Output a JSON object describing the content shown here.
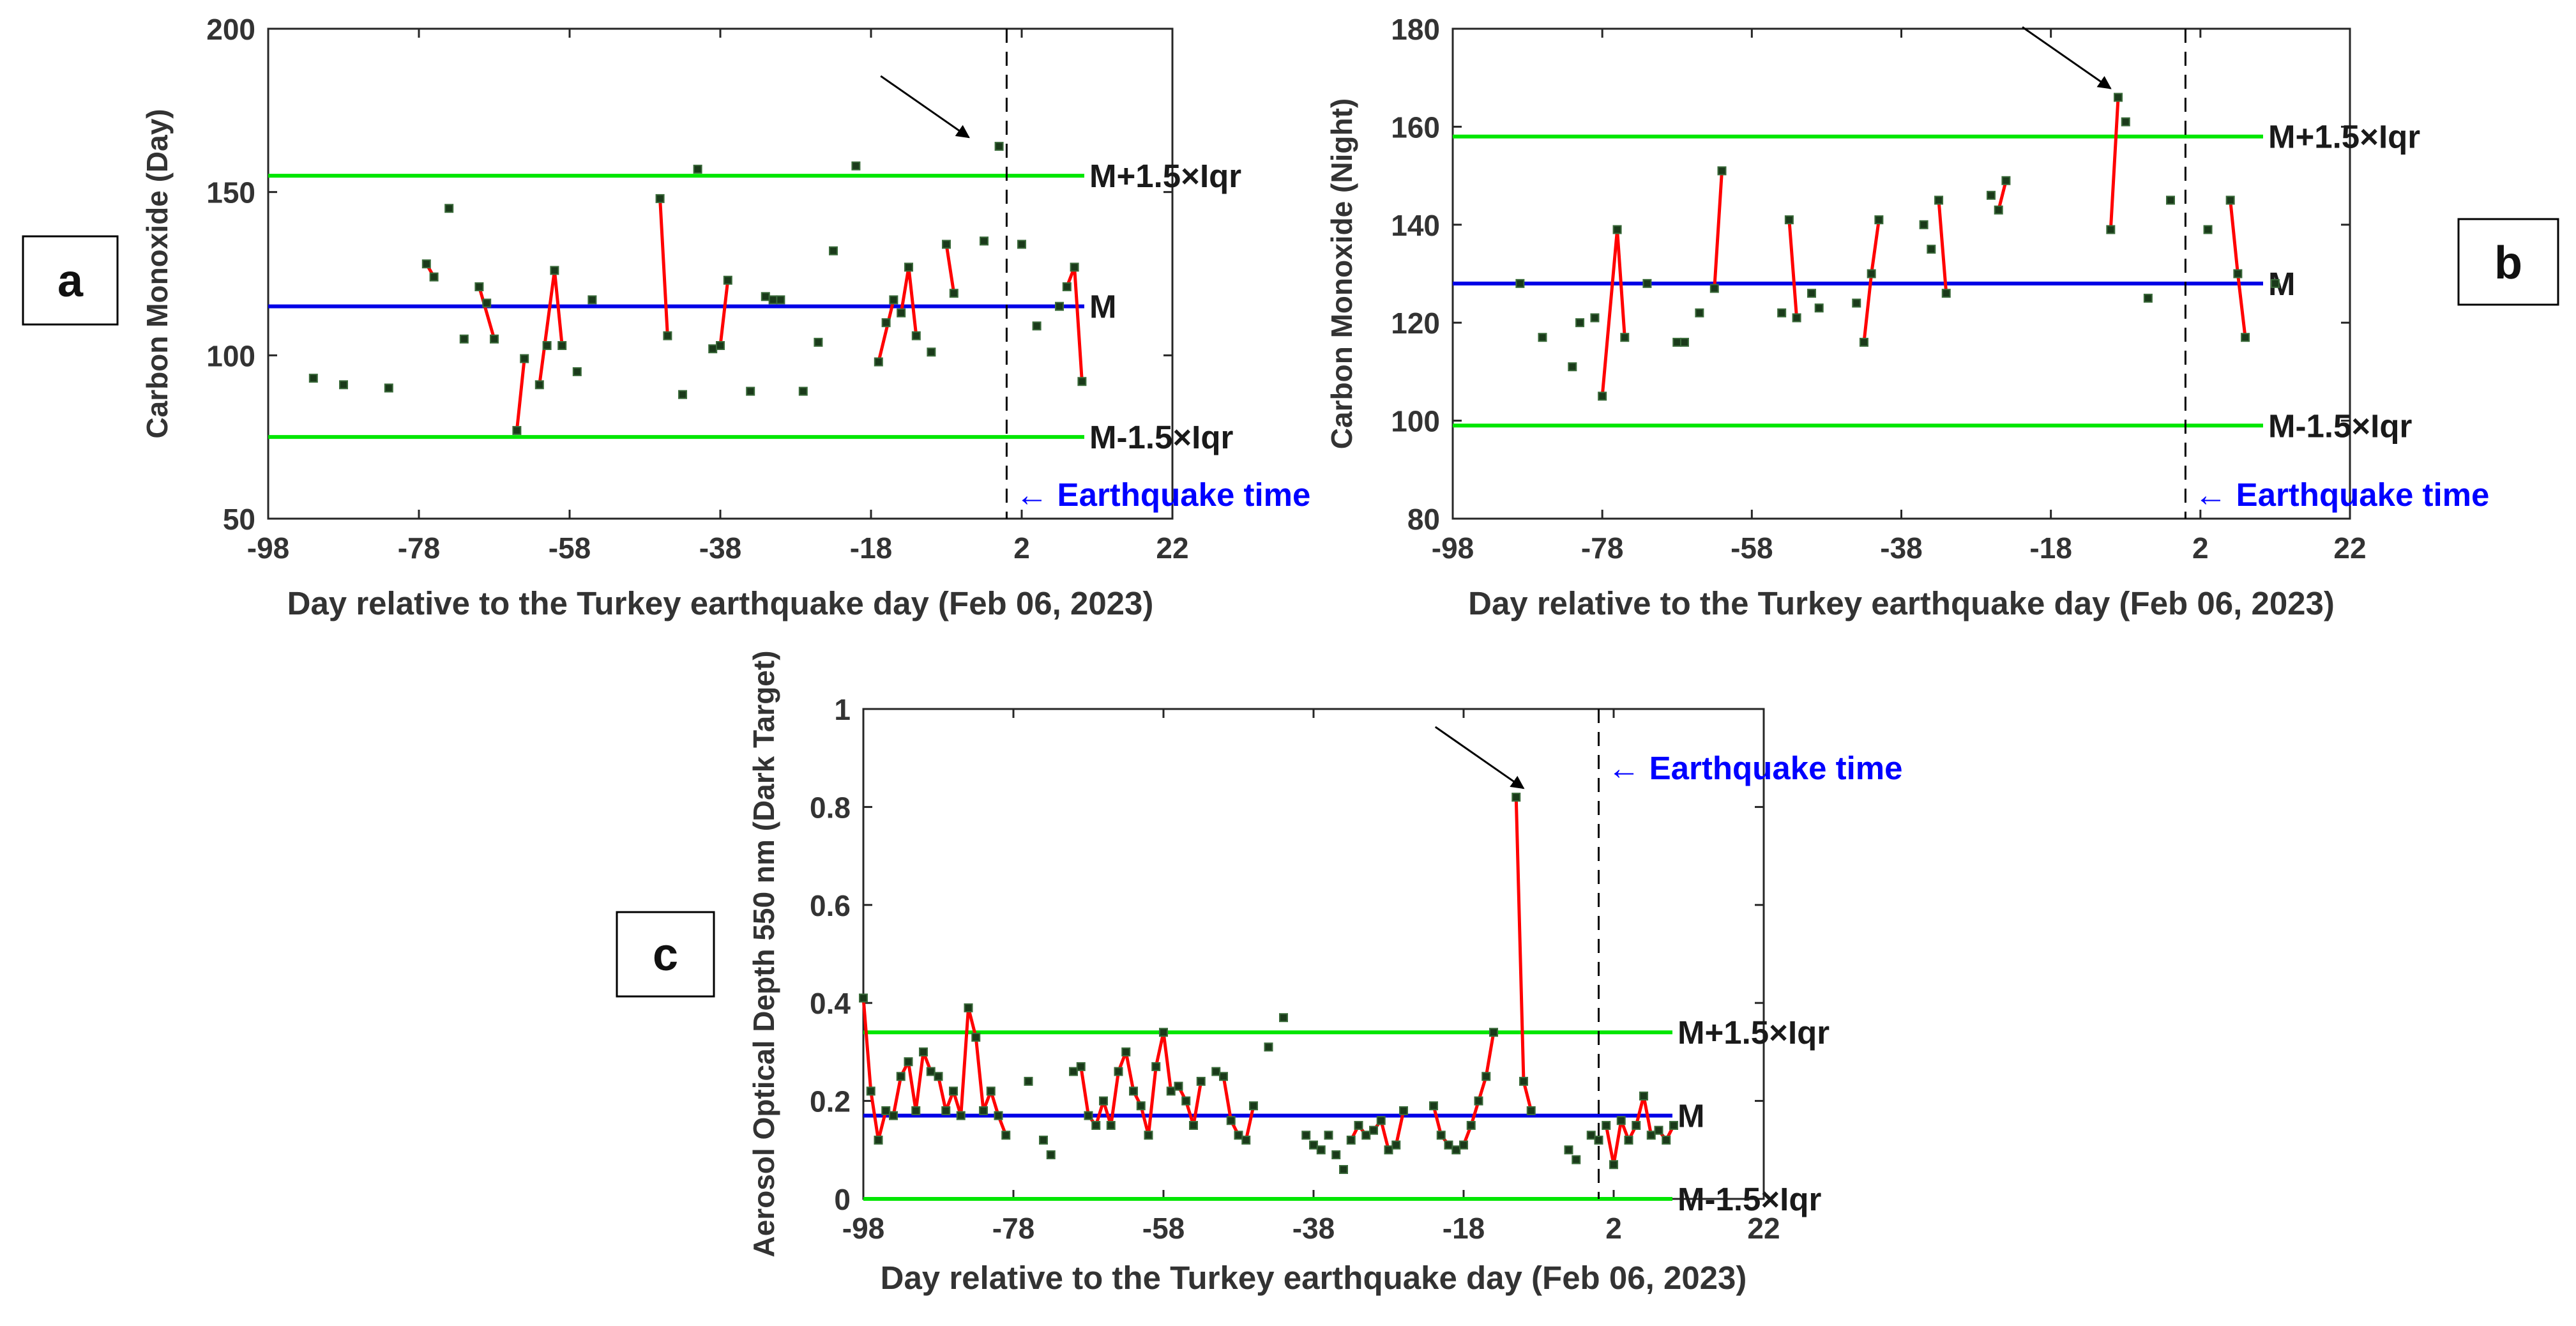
{
  "figure": {
    "panel_labels": [
      "a",
      "b",
      "c"
    ]
  },
  "colors": {
    "upper_lower": "#00e600",
    "median": "#0000e6",
    "series_line": "#ff0000",
    "points": "#1a3a1a",
    "earthquake_label": "#0000ff"
  },
  "chart_data": [
    {
      "id": "a",
      "type": "line",
      "xlabel": "Day relative to the Turkey earthquake day (Feb 06, 2023)",
      "ylabel": "Carbon Monoxide (Day)",
      "xlim": [
        -98,
        22
      ],
      "ylim": [
        50,
        200
      ],
      "xticks": [
        -98,
        -78,
        -58,
        -38,
        -18,
        2,
        22
      ],
      "xtick_labels": [
        "-98",
        "-78",
        "-58",
        "-38",
        "-18",
        "2",
        "22"
      ],
      "yticks": [
        50,
        100,
        150,
        200
      ],
      "ytick_labels": [
        "50",
        "100",
        "150",
        "200"
      ],
      "median": 115,
      "upper": 155,
      "lower": 75,
      "median_label": "M",
      "upper_label": "M+1.5×Iqr",
      "lower_label": "M-1.5×Iqr",
      "earthquake_day": 0,
      "earthquake_label": "← Earthquake time",
      "anomaly_arrow_at": [
        -4,
        164
      ],
      "points": [
        [
          -92,
          93
        ],
        [
          -88,
          91
        ],
        [
          -82,
          90
        ],
        [
          -77,
          128
        ],
        [
          -76,
          124
        ],
        [
          -74,
          145
        ],
        [
          -72,
          105
        ],
        [
          -70,
          121
        ],
        [
          -69,
          116
        ],
        [
          -68,
          105
        ],
        [
          -65,
          77
        ],
        [
          -64,
          99
        ],
        [
          -62,
          91
        ],
        [
          -61,
          103
        ],
        [
          -60,
          126
        ],
        [
          -59,
          103
        ],
        [
          -57,
          95
        ],
        [
          -55,
          117
        ],
        [
          -46,
          148
        ],
        [
          -45,
          106
        ],
        [
          -43,
          88
        ],
        [
          -41,
          157
        ],
        [
          -39,
          102
        ],
        [
          -38,
          103
        ],
        [
          -37,
          123
        ],
        [
          -34,
          89
        ],
        [
          -32,
          118
        ],
        [
          -31,
          117
        ],
        [
          -30,
          117
        ],
        [
          -27,
          89
        ],
        [
          -25,
          104
        ],
        [
          -23,
          132
        ],
        [
          -20,
          158
        ],
        [
          -17,
          98
        ],
        [
          -16,
          110
        ],
        [
          -15,
          117
        ],
        [
          -14,
          113
        ],
        [
          -13,
          127
        ],
        [
          -12,
          106
        ],
        [
          -10,
          101
        ],
        [
          -8,
          134
        ],
        [
          -7,
          119
        ],
        [
          -3,
          135
        ],
        [
          -1,
          164
        ],
        [
          2,
          134
        ],
        [
          4,
          109
        ],
        [
          7,
          115
        ],
        [
          8,
          121
        ],
        [
          9,
          127
        ],
        [
          10,
          92
        ]
      ],
      "segments": [
        [
          -77,
          128,
          -76,
          124
        ],
        [
          -70,
          121,
          -68,
          105
        ],
        [
          -65,
          77,
          -64,
          99
        ],
        [
          -62,
          91,
          -60,
          126
        ],
        [
          -60,
          126,
          -59,
          103
        ],
        [
          -46,
          148,
          -45,
          106
        ],
        [
          -39,
          102,
          -38,
          103
        ],
        [
          -38,
          103,
          -37,
          123
        ],
        [
          -17,
          98,
          -15,
          117
        ],
        [
          -14,
          113,
          -13,
          127
        ],
        [
          -13,
          127,
          -12,
          106
        ],
        [
          -8,
          134,
          -7,
          119
        ],
        [
          8,
          121,
          9,
          127
        ],
        [
          9,
          127,
          10,
          92
        ]
      ]
    },
    {
      "id": "b",
      "type": "line",
      "xlabel": "Day relative to the Turkey earthquake day (Feb 06, 2023)",
      "ylabel": "Carbon Monoxide (Night)",
      "xlim": [
        -98,
        22
      ],
      "ylim": [
        80,
        180
      ],
      "xticks": [
        -98,
        -78,
        -58,
        -38,
        -18,
        2,
        22
      ],
      "xtick_labels": [
        "-98",
        "-78",
        "-58",
        "-38",
        "-18",
        "2",
        "22"
      ],
      "yticks": [
        80,
        100,
        120,
        140,
        160,
        180
      ],
      "ytick_labels": [
        "80",
        "100",
        "120",
        "140",
        "160",
        "180"
      ],
      "median": 128,
      "upper": 158,
      "lower": 99,
      "median_label": "M",
      "upper_label": "M+1.5×Iqr",
      "lower_label": "M-1.5×Iqr",
      "earthquake_day": 0,
      "earthquake_label": "← Earthquake time",
      "anomaly_arrow_at": [
        -9,
        166
      ],
      "points": [
        [
          -89,
          128
        ],
        [
          -86,
          117
        ],
        [
          -82,
          111
        ],
        [
          -81,
          120
        ],
        [
          -79,
          121
        ],
        [
          -78,
          105
        ],
        [
          -76,
          139
        ],
        [
          -75,
          117
        ],
        [
          -72,
          128
        ],
        [
          -68,
          116
        ],
        [
          -67,
          116
        ],
        [
          -65,
          122
        ],
        [
          -63,
          127
        ],
        [
          -62,
          151
        ],
        [
          -54,
          122
        ],
        [
          -53,
          141
        ],
        [
          -52,
          121
        ],
        [
          -50,
          126
        ],
        [
          -49,
          123
        ],
        [
          -44,
          124
        ],
        [
          -43,
          116
        ],
        [
          -42,
          130
        ],
        [
          -41,
          141
        ],
        [
          -35,
          140
        ],
        [
          -34,
          135
        ],
        [
          -33,
          145
        ],
        [
          -32,
          126
        ],
        [
          -26,
          146
        ],
        [
          -25,
          143
        ],
        [
          -24,
          149
        ],
        [
          -10,
          139
        ],
        [
          -9,
          166
        ],
        [
          -8,
          161
        ],
        [
          -5,
          125
        ],
        [
          -2,
          145
        ],
        [
          3,
          139
        ],
        [
          6,
          145
        ],
        [
          7,
          130
        ],
        [
          8,
          117
        ],
        [
          12,
          128
        ]
      ],
      "segments": [
        [
          -78,
          105,
          -76,
          139
        ],
        [
          -76,
          139,
          -75,
          117
        ],
        [
          -63,
          127,
          -62,
          151
        ],
        [
          -53,
          141,
          -52,
          121
        ],
        [
          -43,
          116,
          -42,
          130
        ],
        [
          -42,
          130,
          -41,
          141
        ],
        [
          -33,
          145,
          -32,
          126
        ],
        [
          -25,
          143,
          -24,
          149
        ],
        [
          -10,
          139,
          -9,
          166
        ],
        [
          6,
          145,
          7,
          130
        ],
        [
          7,
          130,
          8,
          117
        ]
      ]
    },
    {
      "id": "c",
      "type": "line",
      "xlabel": "Day relative to the Turkey earthquake day (Feb 06, 2023)",
      "ylabel": "Aerosol Optical Depth 550 nm (Dark Target)",
      "xlim": [
        -98,
        22
      ],
      "ylim": [
        0,
        1
      ],
      "xticks": [
        -98,
        -78,
        -58,
        -38,
        -18,
        2,
        22
      ],
      "xtick_labels": [
        "-98",
        "-78",
        "-58",
        "-38",
        "-18",
        "2",
        "22"
      ],
      "yticks": [
        0,
        0.2,
        0.4,
        0.6,
        0.8,
        1
      ],
      "ytick_labels": [
        "0",
        "0.2",
        "0.4",
        "0.6",
        "0.8",
        "1"
      ],
      "median": 0.17,
      "upper": 0.34,
      "lower": 0.0,
      "median_label": "M",
      "upper_label": "M+1.5×Iqr",
      "lower_label": "M-1.5×Iqr",
      "earthquake_day": 0,
      "earthquake_label": "← Earthquake time",
      "anomaly_arrow_at": [
        -9,
        0.82
      ],
      "points": [
        [
          -98,
          0.41
        ],
        [
          -97,
          0.22
        ],
        [
          -96,
          0.12
        ],
        [
          -95,
          0.18
        ],
        [
          -94,
          0.17
        ],
        [
          -93,
          0.25
        ],
        [
          -92,
          0.28
        ],
        [
          -91,
          0.18
        ],
        [
          -90,
          0.3
        ],
        [
          -89,
          0.26
        ],
        [
          -88,
          0.25
        ],
        [
          -87,
          0.18
        ],
        [
          -86,
          0.22
        ],
        [
          -85,
          0.17
        ],
        [
          -84,
          0.39
        ],
        [
          -83,
          0.33
        ],
        [
          -82,
          0.18
        ],
        [
          -81,
          0.22
        ],
        [
          -80,
          0.17
        ],
        [
          -79,
          0.13
        ],
        [
          -76,
          0.24
        ],
        [
          -74,
          0.12
        ],
        [
          -73,
          0.09
        ],
        [
          -70,
          0.26
        ],
        [
          -69,
          0.27
        ],
        [
          -68,
          0.17
        ],
        [
          -67,
          0.15
        ],
        [
          -66,
          0.2
        ],
        [
          -65,
          0.15
        ],
        [
          -64,
          0.26
        ],
        [
          -63,
          0.3
        ],
        [
          -62,
          0.22
        ],
        [
          -61,
          0.19
        ],
        [
          -60,
          0.13
        ],
        [
          -59,
          0.27
        ],
        [
          -58,
          0.34
        ],
        [
          -57,
          0.22
        ],
        [
          -56,
          0.23
        ],
        [
          -55,
          0.2
        ],
        [
          -54,
          0.15
        ],
        [
          -53,
          0.24
        ],
        [
          -51,
          0.26
        ],
        [
          -50,
          0.25
        ],
        [
          -49,
          0.16
        ],
        [
          -48,
          0.13
        ],
        [
          -47,
          0.12
        ],
        [
          -46,
          0.19
        ],
        [
          -44,
          0.31
        ],
        [
          -42,
          0.37
        ],
        [
          -39,
          0.13
        ],
        [
          -38,
          0.11
        ],
        [
          -37,
          0.1
        ],
        [
          -36,
          0.13
        ],
        [
          -35,
          0.09
        ],
        [
          -34,
          0.06
        ],
        [
          -33,
          0.12
        ],
        [
          -32,
          0.15
        ],
        [
          -31,
          0.13
        ],
        [
          -30,
          0.14
        ],
        [
          -29,
          0.16
        ],
        [
          -28,
          0.1
        ],
        [
          -27,
          0.11
        ],
        [
          -26,
          0.18
        ],
        [
          -22,
          0.19
        ],
        [
          -21,
          0.13
        ],
        [
          -20,
          0.11
        ],
        [
          -19,
          0.1
        ],
        [
          -18,
          0.11
        ],
        [
          -17,
          0.15
        ],
        [
          -16,
          0.2
        ],
        [
          -15,
          0.25
        ],
        [
          -14,
          0.34
        ],
        [
          -11,
          0.82
        ],
        [
          -10,
          0.24
        ],
        [
          -9,
          0.18
        ],
        [
          -4,
          0.1
        ],
        [
          -3,
          0.08
        ],
        [
          -1,
          0.13
        ],
        [
          0,
          0.12
        ],
        [
          1,
          0.15
        ],
        [
          2,
          0.07
        ],
        [
          3,
          0.16
        ],
        [
          4,
          0.12
        ],
        [
          5,
          0.15
        ],
        [
          6,
          0.21
        ],
        [
          7,
          0.13
        ],
        [
          8,
          0.14
        ],
        [
          9,
          0.12
        ],
        [
          10,
          0.15
        ]
      ],
      "segments": [
        [
          -98,
          0.41,
          -97,
          0.22
        ],
        [
          -97,
          0.22,
          -96,
          0.12
        ],
        [
          -96,
          0.12,
          -95,
          0.18
        ],
        [
          -95,
          0.18,
          -94,
          0.17
        ],
        [
          -94,
          0.17,
          -93,
          0.25
        ],
        [
          -93,
          0.25,
          -92,
          0.28
        ],
        [
          -92,
          0.28,
          -91,
          0.18
        ],
        [
          -91,
          0.18,
          -90,
          0.3
        ],
        [
          -90,
          0.3,
          -89,
          0.26
        ],
        [
          -89,
          0.26,
          -88,
          0.25
        ],
        [
          -88,
          0.25,
          -87,
          0.18
        ],
        [
          -87,
          0.18,
          -86,
          0.22
        ],
        [
          -86,
          0.22,
          -85,
          0.17
        ],
        [
          -85,
          0.17,
          -84,
          0.39
        ],
        [
          -84,
          0.39,
          -83,
          0.33
        ],
        [
          -83,
          0.33,
          -82,
          0.18
        ],
        [
          -82,
          0.18,
          -81,
          0.22
        ],
        [
          -81,
          0.22,
          -80,
          0.17
        ],
        [
          -80,
          0.17,
          -79,
          0.13
        ],
        [
          -70,
          0.26,
          -69,
          0.27
        ],
        [
          -69,
          0.27,
          -68,
          0.17
        ],
        [
          -68,
          0.17,
          -67,
          0.15
        ],
        [
          -67,
          0.15,
          -66,
          0.2
        ],
        [
          -66,
          0.2,
          -65,
          0.15
        ],
        [
          -65,
          0.15,
          -64,
          0.26
        ],
        [
          -64,
          0.26,
          -63,
          0.3
        ],
        [
          -63,
          0.3,
          -62,
          0.22
        ],
        [
          -62,
          0.22,
          -61,
          0.19
        ],
        [
          -61,
          0.19,
          -60,
          0.13
        ],
        [
          -60,
          0.13,
          -59,
          0.27
        ],
        [
          -59,
          0.27,
          -58,
          0.34
        ],
        [
          -58,
          0.34,
          -57,
          0.22
        ],
        [
          -57,
          0.22,
          -56,
          0.23
        ],
        [
          -56,
          0.23,
          -55,
          0.2
        ],
        [
          -55,
          0.2,
          -54,
          0.15
        ],
        [
          -54,
          0.15,
          -53,
          0.24
        ],
        [
          -51,
          0.26,
          -50,
          0.25
        ],
        [
          -50,
          0.25,
          -49,
          0.16
        ],
        [
          -49,
          0.16,
          -48,
          0.13
        ],
        [
          -48,
          0.13,
          -47,
          0.12
        ],
        [
          -47,
          0.12,
          -46,
          0.19
        ],
        [
          -33,
          0.12,
          -32,
          0.15
        ],
        [
          -32,
          0.15,
          -31,
          0.13
        ],
        [
          -31,
          0.13,
          -30,
          0.14
        ],
        [
          -30,
          0.14,
          -29,
          0.16
        ],
        [
          -29,
          0.16,
          -28,
          0.1
        ],
        [
          -28,
          0.1,
          -27,
          0.11
        ],
        [
          -27,
          0.11,
          -26,
          0.18
        ],
        [
          -22,
          0.19,
          -21,
          0.13
        ],
        [
          -21,
          0.13,
          -20,
          0.11
        ],
        [
          -20,
          0.11,
          -19,
          0.1
        ],
        [
          -19,
          0.1,
          -18,
          0.11
        ],
        [
          -18,
          0.11,
          -17,
          0.15
        ],
        [
          -17,
          0.15,
          -16,
          0.2
        ],
        [
          -16,
          0.2,
          -15,
          0.25
        ],
        [
          -15,
          0.25,
          -14,
          0.34
        ],
        [
          -11,
          0.82,
          -10,
          0.24
        ],
        [
          -10,
          0.24,
          -9,
          0.18
        ],
        [
          1,
          0.15,
          2,
          0.07
        ],
        [
          2,
          0.07,
          3,
          0.16
        ],
        [
          3,
          0.16,
          4,
          0.12
        ],
        [
          4,
          0.12,
          5,
          0.15
        ],
        [
          5,
          0.15,
          6,
          0.21
        ],
        [
          6,
          0.21,
          7,
          0.13
        ],
        [
          7,
          0.13,
          8,
          0.14
        ],
        [
          8,
          0.14,
          9,
          0.12
        ],
        [
          9,
          0.12,
          10,
          0.15
        ]
      ]
    }
  ]
}
